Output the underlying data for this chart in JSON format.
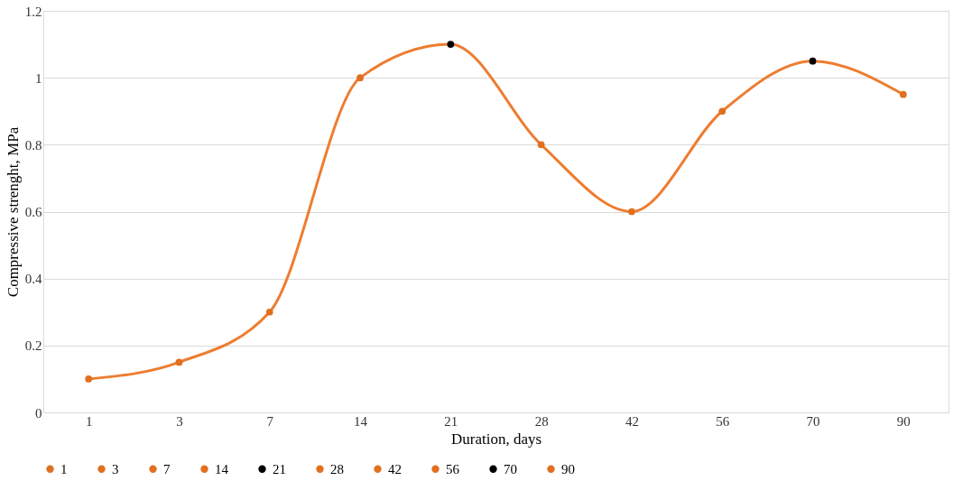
{
  "chart_data": {
    "type": "line",
    "xlabel": "Duration, days",
    "ylabel": "Compressive strenght, MPa",
    "categories": [
      "1",
      "3",
      "7",
      "14",
      "21",
      "28",
      "42",
      "56",
      "70",
      "90"
    ],
    "series": [
      {
        "color": "#ed7d31",
        "values": [
          0.1,
          0.15,
          0.3,
          1.0,
          1.1,
          0.8,
          0.6,
          0.9,
          1.05,
          0.95
        ]
      },
      {
        "type": "scatter",
        "marker": "circle",
        "name": "1",
        "color": "#e07020",
        "values": [
          0.1,
          null,
          null,
          null,
          null,
          null,
          null,
          null,
          null,
          null
        ]
      },
      {
        "type": "scatter",
        "marker": "circle",
        "name": "3",
        "color": "#e07020",
        "values": [
          null,
          0.15,
          null,
          null,
          null,
          null,
          null,
          null,
          null,
          null
        ]
      },
      {
        "type": "scatter",
        "marker": "circle",
        "name": "7",
        "color": "#e07020",
        "values": [
          null,
          null,
          0.3,
          null,
          null,
          null,
          null,
          null,
          null,
          null
        ]
      },
      {
        "type": "scatter",
        "marker": "circle",
        "name": "14",
        "color": "#e07020",
        "values": [
          null,
          null,
          null,
          1.0,
          null,
          null,
          null,
          null,
          null,
          null
        ]
      },
      {
        "type": "scatter",
        "marker": "circle",
        "name": "21",
        "color": "#000000",
        "values": [
          null,
          null,
          null,
          null,
          1.1,
          null,
          null,
          null,
          null,
          null
        ]
      },
      {
        "type": "scatter",
        "marker": "circle",
        "name": "28",
        "color": "#e07020",
        "values": [
          null,
          null,
          null,
          null,
          null,
          0.8,
          null,
          null,
          null,
          null
        ]
      },
      {
        "type": "scatter",
        "marker": "circle",
        "name": "42",
        "color": "#e07020",
        "values": [
          null,
          null,
          null,
          null,
          null,
          null,
          0.6,
          null,
          null,
          null
        ]
      },
      {
        "type": "scatter",
        "marker": "circle",
        "name": "56",
        "color": "#e07020",
        "values": [
          null,
          null,
          null,
          null,
          null,
          null,
          null,
          0.9,
          null,
          null
        ]
      },
      {
        "type": "scatter",
        "marker": "circle",
        "name": "70",
        "color": "#000000",
        "values": [
          null,
          null,
          null,
          null,
          null,
          null,
          null,
          null,
          1.05,
          null
        ]
      },
      {
        "type": "scatter",
        "marker": "circle",
        "name": "90",
        "color": "#e07020",
        "values": [
          null,
          null,
          null,
          null,
          null,
          null,
          null,
          null,
          null,
          0.95
        ]
      }
    ],
    "ylim": [
      0,
      1.2
    ],
    "yticks": [
      0,
      0.2,
      0.4,
      0.6,
      0.8,
      1,
      1.2
    ],
    "grid": "y",
    "legend": "bottom",
    "line_style": "solid"
  }
}
